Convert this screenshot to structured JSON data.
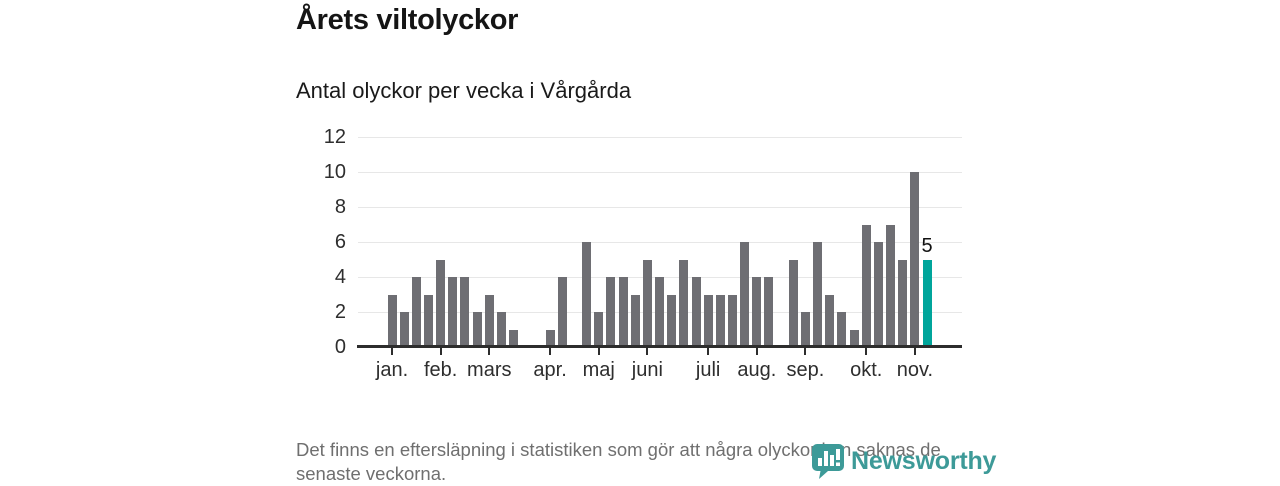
{
  "header": {
    "title": "Årets viltolyckor",
    "subtitle": "Antal olyckor per vecka i Vårgårda"
  },
  "chart_data": {
    "type": "bar",
    "title": "Årets viltolyckor",
    "subtitle": "Antal olyckor per vecka i Vårgårda",
    "x_unit": "vecka",
    "values": [
      3,
      2,
      4,
      3,
      5,
      4,
      4,
      2,
      3,
      2,
      1,
      0,
      0,
      1,
      4,
      0,
      6,
      2,
      4,
      4,
      3,
      5,
      4,
      3,
      5,
      4,
      3,
      3,
      3,
      6,
      4,
      4,
      0,
      5,
      2,
      6,
      3,
      2,
      1,
      7,
      6,
      7,
      5,
      10,
      5
    ],
    "highlight": {
      "index": 44,
      "value": 5,
      "label": "5",
      "color": "#00a59b"
    },
    "bar_color": "#6e6e73",
    "y_ticks": [
      0,
      2,
      4,
      6,
      8,
      10,
      12
    ],
    "ylim": [
      0,
      12
    ],
    "grid": true,
    "legend": false,
    "months": [
      {
        "label": "jan.",
        "week_index": 0
      },
      {
        "label": "feb.",
        "week_index": 4
      },
      {
        "label": "mars",
        "week_index": 8
      },
      {
        "label": "apr.",
        "week_index": 13
      },
      {
        "label": "maj",
        "week_index": 17
      },
      {
        "label": "juni",
        "week_index": 21
      },
      {
        "label": "juli",
        "week_index": 26
      },
      {
        "label": "aug.",
        "week_index": 30
      },
      {
        "label": "sep.",
        "week_index": 34
      },
      {
        "label": "okt.",
        "week_index": 39
      },
      {
        "label": "nov.",
        "week_index": 43
      }
    ]
  },
  "footer": {
    "note": "Det finns en eftersläpning i statistiken som gör att några olyckor kan saknas de senaste veckorna.",
    "logo_text": "Newsworthy"
  },
  "colors": {
    "bar": "#6e6e73",
    "highlight": "#00a59b",
    "logo": "#3d9a98",
    "axis": "#2d2d2d",
    "grid": "#e7e7e7"
  }
}
